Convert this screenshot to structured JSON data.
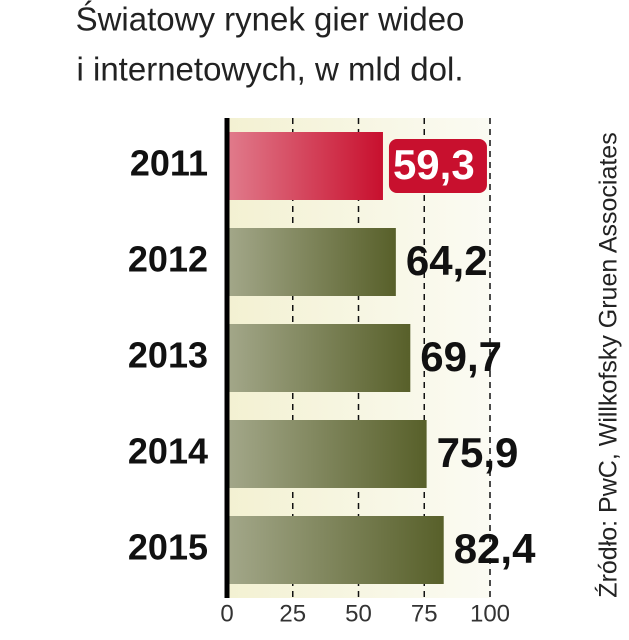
{
  "chart_data": {
    "type": "bar",
    "orientation": "horizontal",
    "title": [
      "Światowy rynek gier wideo",
      "i internetowych, w mld dol."
    ],
    "source": "Źródło: PwC, Willkofsky Gruen Associates",
    "categories": [
      "2011",
      "2012",
      "2013",
      "2014",
      "2015"
    ],
    "values": [
      59.3,
      64.2,
      69.7,
      75.9,
      82.4
    ],
    "value_labels": [
      "59,3",
      "64,2",
      "69,7",
      "75,9",
      "82,4"
    ],
    "colors": [
      "#c8102e",
      "#58602a",
      "#58602a",
      "#58602a",
      "#58602a"
    ],
    "highlight_index": 0,
    "xlim": [
      0,
      100
    ],
    "xticks": [
      0,
      25,
      50,
      75,
      100
    ],
    "grid": true
  }
}
